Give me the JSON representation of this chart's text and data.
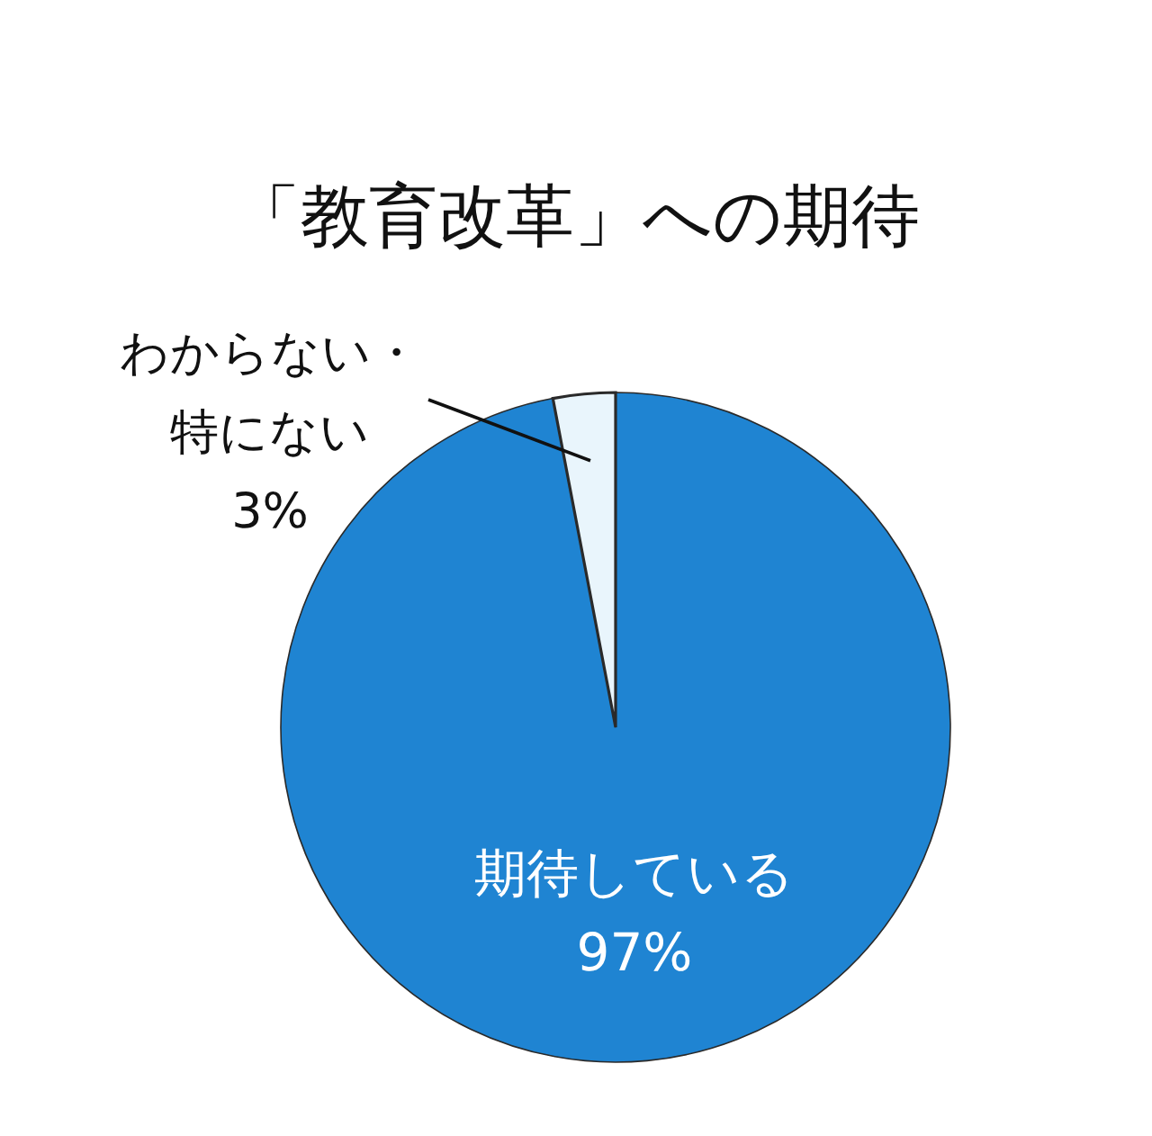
{
  "chart_data": {
    "type": "pie",
    "title": "「教育改革」への期待",
    "categories": [
      "期待している",
      "わからない・特にない"
    ],
    "values": [
      97,
      3
    ],
    "colors": [
      "#1f84d2",
      "#e9f5fc"
    ],
    "value_labels": [
      "97%",
      "3%"
    ]
  }
}
